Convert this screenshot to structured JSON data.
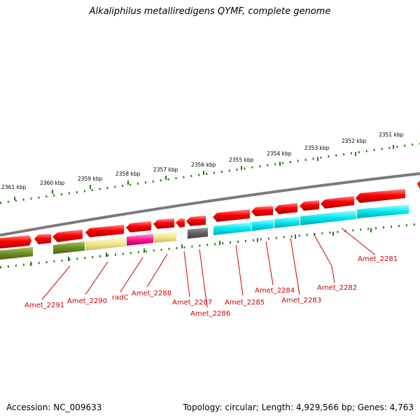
{
  "title": "Alkaliphilus metalliredigens QYMF, complete genome",
  "footer": {
    "accession": "Accession: NC_009633",
    "summary": "Topology: circular; Length: 4,929,566 bp; Genes: 4,763"
  },
  "kbp_ticks": [
    {
      "label": "2361 kbp"
    },
    {
      "label": "2360 kbp"
    },
    {
      "label": "2359 kbp"
    },
    {
      "label": "2358 kbp"
    },
    {
      "label": "2357 kbp"
    },
    {
      "label": "2356 kbp"
    },
    {
      "label": "2355 kbp"
    },
    {
      "label": "2354 kbp"
    },
    {
      "label": "2353 kbp"
    },
    {
      "label": "2352 kbp"
    },
    {
      "label": "2351 kbp"
    }
  ],
  "gene_labels": [
    {
      "label": "Amet_2291"
    },
    {
      "label": "Amet_2290"
    },
    {
      "label": "radC"
    },
    {
      "label": "Amet_2288"
    },
    {
      "label": "Amet_2287"
    },
    {
      "label": "Amet_2286"
    },
    {
      "label": "Amet_2285"
    },
    {
      "label": "Amet_2284"
    },
    {
      "label": "Amet_2283"
    },
    {
      "label": "Amet_2282"
    },
    {
      "label": "Amet_2281"
    }
  ],
  "colors": {
    "cds_forward": "#ee0000",
    "backbone": "#808080",
    "tick": "#2a7a1a",
    "label_line": "#cc0000",
    "label_text": "#cc0000",
    "cog_olive": "#6b8e23",
    "cog_khaki": "#f0e68c",
    "cog_magenta": "#ff1493",
    "cog_grey": "#707070",
    "cog_cyan": "#00e5ee"
  }
}
